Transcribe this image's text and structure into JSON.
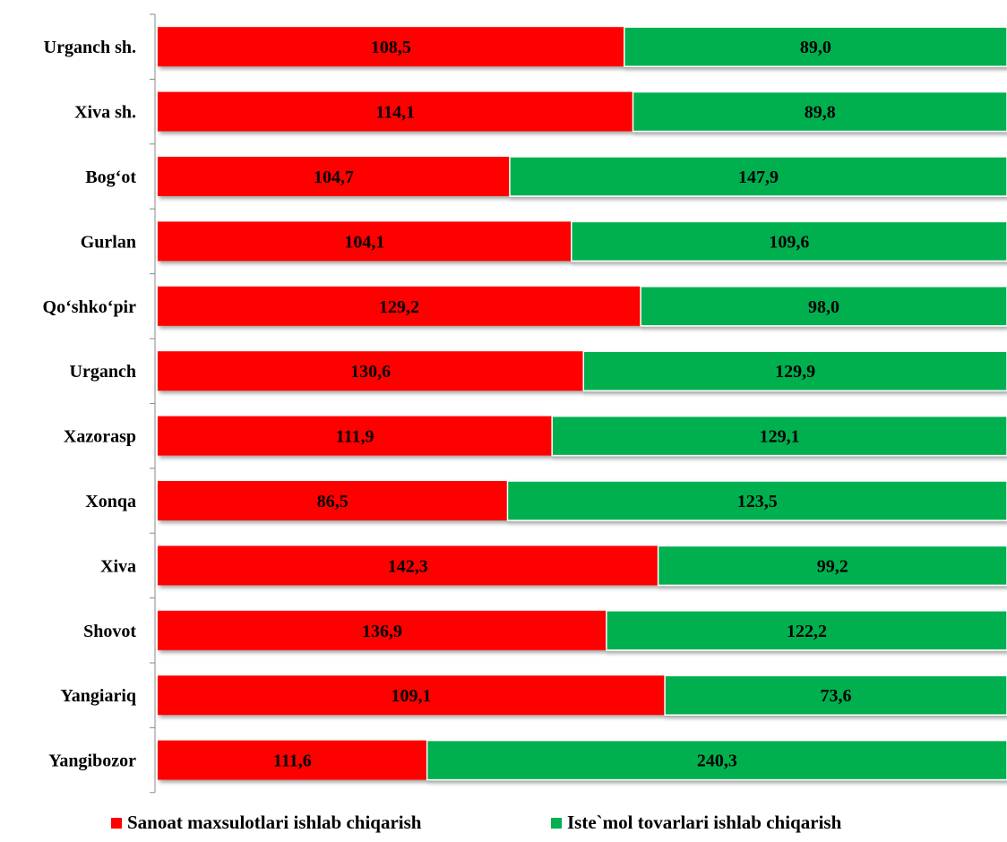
{
  "chart_data": {
    "type": "bar",
    "orientation": "horizontal",
    "stacked": "percent",
    "categories": [
      "Urganch sh.",
      "Xiva sh.",
      "Bog‘ot",
      "Gurlan",
      "Qo‘shko‘pir",
      "Urganch",
      "Xazorasp",
      "Xonqa",
      "Xiva",
      "Shovot",
      "Yangiariq",
      "Yangibozor"
    ],
    "series": [
      {
        "name": "Sanoat maxsulotlari ishlab chiqarish",
        "color": "#ff0000",
        "values": [
          108.5,
          114.1,
          104.7,
          104.1,
          129.2,
          130.6,
          111.9,
          86.5,
          142.3,
          136.9,
          109.1,
          111.6
        ],
        "labels": [
          "108,5",
          "114,1",
          "104,7",
          "104,1",
          "129,2",
          "130,6",
          "111,9",
          "86,5",
          "142,3",
          "136,9",
          "109,1",
          "111,6"
        ]
      },
      {
        "name": "Iste`mol tovarlari ishlab chiqarish",
        "color": "#00b050",
        "values": [
          89.0,
          89.8,
          147.9,
          109.6,
          98.0,
          129.9,
          129.1,
          123.5,
          99.2,
          122.2,
          73.6,
          240.3
        ],
        "labels": [
          "89,0",
          "89,8",
          "147,9",
          "109,6",
          "98,0",
          "129,9",
          "129,1",
          "123,5",
          "99,2",
          "122,2",
          "73,6",
          "240,3"
        ]
      }
    ],
    "legend_position": "bottom",
    "grid": false
  }
}
